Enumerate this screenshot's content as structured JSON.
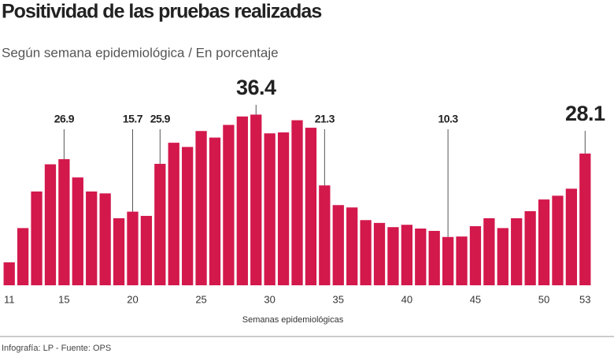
{
  "chart_data": {
    "type": "bar",
    "title": "Positividad de las pruebas realizadas",
    "subtitle": "Según semana epidemiológica / En porcentaje",
    "x_label": "Semanas epidemiológicas",
    "source": "Infografía: LP - Fuente: OPS",
    "color": "#d3184c",
    "x": [
      11,
      12,
      13,
      14,
      15,
      16,
      17,
      18,
      19,
      20,
      21,
      22,
      23,
      24,
      25,
      26,
      27,
      28,
      29,
      30,
      31,
      32,
      33,
      34,
      35,
      36,
      37,
      38,
      39,
      40,
      41,
      42,
      43,
      44,
      45,
      46,
      47,
      48,
      49,
      50,
      51,
      52,
      53
    ],
    "values": [
      4.9,
      12.2,
      20.0,
      25.8,
      26.9,
      23.0,
      20.0,
      19.6,
      14.3,
      15.7,
      14.8,
      25.9,
      30.4,
      29.5,
      32.9,
      31.5,
      34.2,
      36.0,
      36.4,
      32.4,
      32.6,
      35.2,
      33.6,
      21.3,
      17.1,
      16.6,
      13.9,
      13.3,
      12.4,
      12.9,
      12.1,
      11.6,
      10.3,
      10.4,
      12.6,
      14.3,
      12.2,
      14.3,
      15.8,
      18.3,
      19.1,
      20.6,
      28.1
    ],
    "value_labels": [
      null,
      null,
      null,
      null,
      "26.9",
      null,
      null,
      null,
      null,
      "15.7",
      null,
      "25.9",
      null,
      null,
      null,
      null,
      null,
      null,
      "36.4",
      null,
      null,
      null,
      null,
      "21.3",
      null,
      null,
      null,
      null,
      null,
      null,
      null,
      null,
      "10.3",
      null,
      null,
      null,
      null,
      null,
      null,
      null,
      null,
      null,
      "28.1"
    ],
    "xlim": [
      10.5,
      53.5
    ],
    "xticks": [
      11,
      15,
      20,
      25,
      30,
      35,
      40,
      45,
      50,
      53
    ],
    "ylim": [
      0,
      40
    ]
  }
}
